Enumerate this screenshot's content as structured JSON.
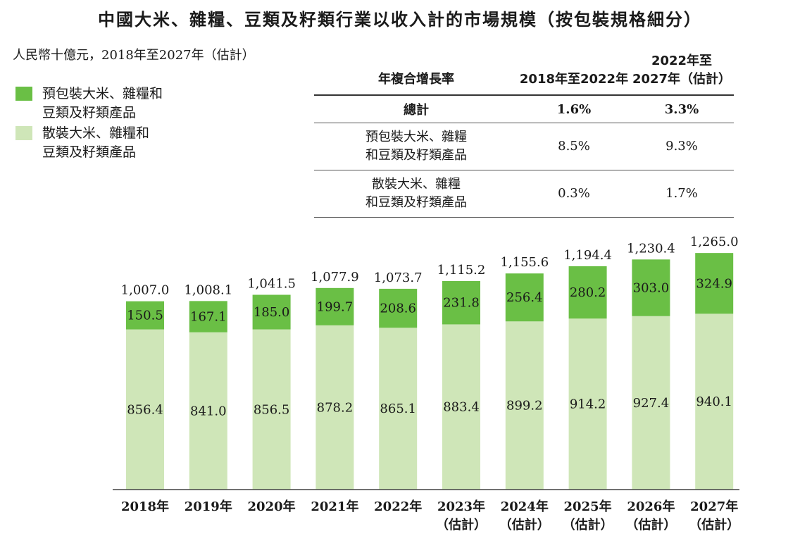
{
  "title": "中國大米、雜糧、豆類及籽類行業以收入計的市場規模（按包裝規格細分）",
  "unit_label": "人民幣十億元，2018年至2027年（估計）",
  "colors": {
    "packaged": "#6abf45",
    "bulk": "#cfe6b8"
  },
  "legend": [
    {
      "label_line1": "預包裝大米、雜糧和",
      "label_line2": "豆類及籽類產品",
      "color": "#6abf45"
    },
    {
      "label_line1": "散裝大米、雜糧和",
      "label_line2": "豆類及籽類產品",
      "color": "#cfe6b8"
    }
  ],
  "cagr_table": {
    "header_label": "年複合增長率",
    "header_col1": "2018年至2022年",
    "header_col2_line1": "2022年至",
    "header_col2_line2": "2027年（估計）",
    "rows": [
      {
        "label_line1": "總計",
        "label_line2": "",
        "v1": "1.6%",
        "v2": "3.3%"
      },
      {
        "label_line1": "預包裝大米、雜糧",
        "label_line2": "和豆類及籽類產品",
        "v1": "8.5%",
        "v2": "9.3%"
      },
      {
        "label_line1": "散裝大米、雜糧",
        "label_line2": "和豆類及籽類產品",
        "v1": "0.3%",
        "v2": "1.7%"
      }
    ]
  },
  "chart_data": {
    "type": "bar",
    "stacked": true,
    "categories": [
      "2018年",
      "2019年",
      "2020年",
      "2021年",
      "2022年",
      "2023年",
      "2024年",
      "2025年",
      "2026年",
      "2027年"
    ],
    "category_sublabels": [
      "",
      "",
      "",
      "",
      "",
      "（估計）",
      "（估計）",
      "（估計）",
      "（估計）",
      "（估計）"
    ],
    "series": [
      {
        "name": "散裝大米、雜糧和豆類及籽類產品",
        "values": [
          856.4,
          841.0,
          856.5,
          878.2,
          865.1,
          883.4,
          899.2,
          914.2,
          927.4,
          940.1
        ]
      },
      {
        "name": "預包裝大米、雜糧和豆類及籽類產品",
        "values": [
          150.5,
          167.1,
          185.0,
          199.7,
          208.6,
          231.8,
          256.4,
          280.2,
          303.0,
          324.9
        ]
      }
    ],
    "value_labels": {
      "bulk": [
        "856.4",
        "841.0",
        "856.5",
        "878.2",
        "865.1",
        "883.4",
        "899.2",
        "914.2",
        "927.4",
        "940.1"
      ],
      "packaged": [
        "150.5",
        "167.1",
        "185.0",
        "199.7",
        "208.6",
        "231.8",
        "256.4",
        "280.2",
        "303.0",
        "324.9"
      ]
    },
    "totals": [
      1007.0,
      1008.1,
      1041.5,
      1077.9,
      1073.7,
      1115.2,
      1155.6,
      1194.4,
      1230.4,
      1265.0
    ],
    "total_labels": [
      "1,007.0",
      "1,008.1",
      "1,041.5",
      "1,077.9",
      "1,073.7",
      "1,115.2",
      "1,155.6",
      "1,194.4",
      "1,230.4",
      "1,265.0"
    ],
    "ylim": [
      0,
      1400
    ],
    "xlabel": "",
    "ylabel": "",
    "grid": false,
    "legend_position": "top-left"
  }
}
